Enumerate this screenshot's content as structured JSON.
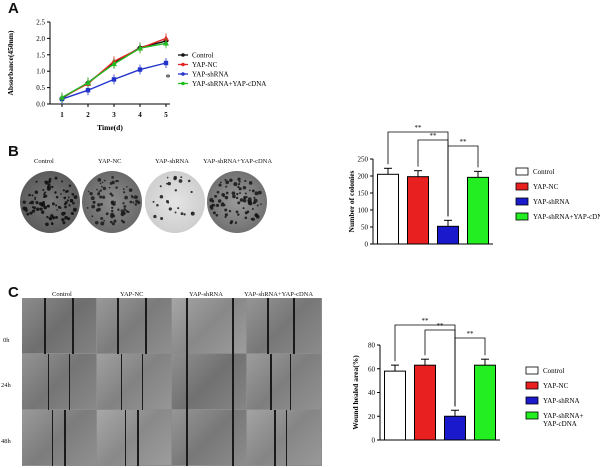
{
  "panels": {
    "a": "A",
    "b": "B",
    "c": "C"
  },
  "panelA": {
    "chart_data": {
      "type": "line",
      "ylabel": "Absorbance(450nm)",
      "xlabel": "Time(d)",
      "ylim": [
        0,
        2.5
      ],
      "yticks": [
        "0.0",
        "0.5",
        "1.0",
        "1.5",
        "2.0",
        "2.5"
      ],
      "categories": [
        "1",
        "2",
        "3",
        "4",
        "5"
      ],
      "series": [
        {
          "name": "Control",
          "color": "#111111",
          "marker": "diamond",
          "values": [
            0.18,
            0.65,
            1.25,
            1.72,
            1.92
          ]
        },
        {
          "name": "YAP-NC",
          "color": "#e52222",
          "marker": "triangle",
          "values": [
            0.2,
            0.62,
            1.3,
            1.7,
            2.0
          ]
        },
        {
          "name": "YAP-shRNA",
          "color": "#2233cc",
          "marker": "square",
          "values": [
            0.15,
            0.42,
            0.75,
            1.05,
            1.25
          ]
        },
        {
          "name": "YAP-shRNA+YAP-cDNA",
          "color": "#22bb22",
          "marker": "triangle",
          "values": [
            0.2,
            0.65,
            1.22,
            1.7,
            1.85
          ]
        }
      ],
      "annotation": "*"
    }
  },
  "panelB": {
    "dish_labels": [
      "Control",
      "YAP-NC",
      "YAP-shRNA",
      "YAP-shRNA+YAP-cDNA"
    ],
    "chart_data": {
      "type": "bar",
      "ylabel": "Number of colonies",
      "ylim": [
        0,
        250
      ],
      "yticks": [
        "0",
        "50",
        "100",
        "150",
        "200",
        "250"
      ],
      "categories": [
        "Control",
        "YAP-NC",
        "YAP-shRNA",
        "YAP-shRNA+YAP-cDNA"
      ],
      "values": [
        205,
        198,
        52,
        196
      ],
      "colors": [
        "#ffffff",
        "#e82020",
        "#1a1acc",
        "#22ee22"
      ],
      "significance": [
        "**",
        "**",
        "**"
      ]
    }
  },
  "panelC": {
    "column_labels": [
      "Control",
      "YAP-NC",
      "YAP-shRNA",
      "YAP-shRNA+YAP-cDNA"
    ],
    "row_labels": [
      "0h",
      "24h",
      "48h"
    ],
    "chart_data": {
      "type": "bar",
      "ylabel": "Wound healed area(%)",
      "ylim": [
        0,
        80
      ],
      "yticks": [
        "0",
        "20",
        "40",
        "60",
        "80"
      ],
      "categories": [
        "Control",
        "YAP-NC",
        "YAP-shRNA",
        "YAP-shRNA+ YAP-cDNA"
      ],
      "values": [
        58,
        63,
        20,
        63
      ],
      "colors": [
        "#ffffff",
        "#e82020",
        "#1a1acc",
        "#22ee22"
      ],
      "legend_lines": [
        [
          "Control"
        ],
        [
          "YAP-NC"
        ],
        [
          "YAP-shRNA"
        ],
        [
          "YAP-shRNA+",
          "YAP-cDNA"
        ]
      ],
      "significance": [
        "**",
        "**",
        "**"
      ]
    }
  }
}
